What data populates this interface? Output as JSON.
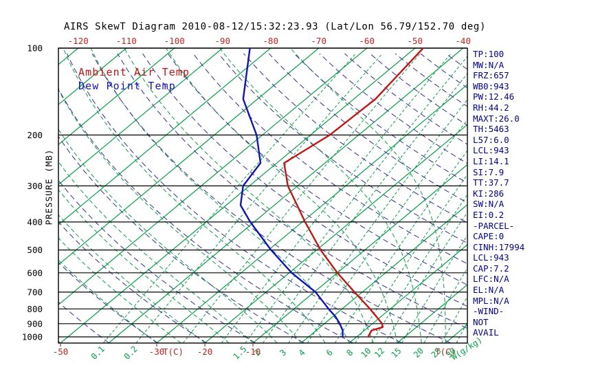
{
  "title": "AIRS SkewT Diagram 2010-08-12/15:32:23.93 (Lat/Lon 56.79/152.70 deg)",
  "legend": {
    "ambient": "Ambient Air Temp",
    "dewpoint": "Dew Point Temp"
  },
  "axes": {
    "pressure_label": "PRESSURE (MB)",
    "temp_axis_title": "T(C)",
    "mixing_axis_title": "W(g/kg)"
  },
  "stats": {
    "lines": [
      "TP:100",
      "MW:N/A",
      "FRZ:657",
      "WB0:943",
      "PW:12.46",
      "RH:44.2",
      "MAXT:26.0",
      "TH:5463",
      "L57:6.0",
      "LCL:943",
      "LI:14.1",
      "SI:7.9",
      "TT:37.7",
      "KI:286",
      "SW:N/A",
      "EI:0.2",
      "-PARCEL-",
      "CAPE:0",
      "CINH:17994",
      "LCL:943",
      "CAP:7.2",
      "LFC:N/A",
      "EL:N/A",
      "MPL:N/A",
      "-WIND-",
      "NOT",
      "AVAIL"
    ]
  },
  "colors": {
    "isotherm_green": "#00a344",
    "mixing_green": "#00a344",
    "adiabat_purple": "#473a9c",
    "axis_red": "#d02020",
    "stats_text": "#0000a0",
    "axis_black": "#000000"
  },
  "chart_data": {
    "type": "line",
    "diagram": "skew-T log-P sounding",
    "title": "AIRS SkewT Diagram 2010-08-12/15:32:23.93 (Lat/Lon 56.79/152.70 deg)",
    "xlabel": "T(C)",
    "ylabel": "PRESSURE (MB)",
    "x2label": "W(g/kg)",
    "grid": true,
    "legend_position": "top-left-inside",
    "pressure_ticks": [
      100,
      200,
      300,
      400,
      500,
      600,
      700,
      800,
      900,
      1000
    ],
    "pressure_range": [
      100,
      1050
    ],
    "top_temp_ticks": [
      -120,
      -110,
      -100,
      -90,
      -80,
      -70,
      -60,
      -50,
      -40
    ],
    "bottom_temp_ticks": [
      -50,
      -30,
      -20,
      -10
    ],
    "isotherms_c": {
      "min": -130,
      "max": 40,
      "step": 10
    },
    "dry_adiabats_k": {
      "min": 220,
      "max": 450,
      "step": 10
    },
    "moist_adiabats_c": {
      "min": -30,
      "max": 30,
      "step": 5
    },
    "mixing_ratio_lines_gkg": [
      0.1,
      0.2,
      0.5,
      1,
      1.5,
      2,
      3,
      4,
      6,
      8,
      10,
      12,
      15,
      20,
      25,
      30
    ],
    "mixing_ratio_tick_labels": [
      "0.1",
      "0.2",
      "1.5",
      "2",
      "3",
      "4",
      "6",
      "8",
      "10",
      "12",
      "15",
      "20",
      "25",
      "30"
    ],
    "series": [
      {
        "name": "Ambient Air Temp",
        "color": "#cc1111",
        "pressure_mb": [
          1000,
          950,
          925,
          900,
          850,
          800,
          700,
          600,
          500,
          400,
          300,
          250,
          200,
          150,
          100
        ],
        "temp_c": [
          12.4,
          11.5,
          13.0,
          12.0,
          9.0,
          5.8,
          -1.6,
          -10.0,
          -19.2,
          -29.4,
          -42.0,
          -48.5,
          -46.0,
          -45.5,
          -48.3
        ]
      },
      {
        "name": "Dew Point Temp",
        "color": "#1111cc",
        "pressure_mb": [
          1000,
          950,
          900,
          850,
          800,
          700,
          600,
          500,
          400,
          350,
          300,
          250,
          200,
          150,
          100
        ],
        "temp_c": [
          7.1,
          5.5,
          3.2,
          0.5,
          -2.8,
          -9.7,
          -19.5,
          -29.5,
          -40.8,
          -47.0,
          -51.3,
          -53.4,
          -61.2,
          -73.0,
          -84.3
        ]
      }
    ]
  }
}
